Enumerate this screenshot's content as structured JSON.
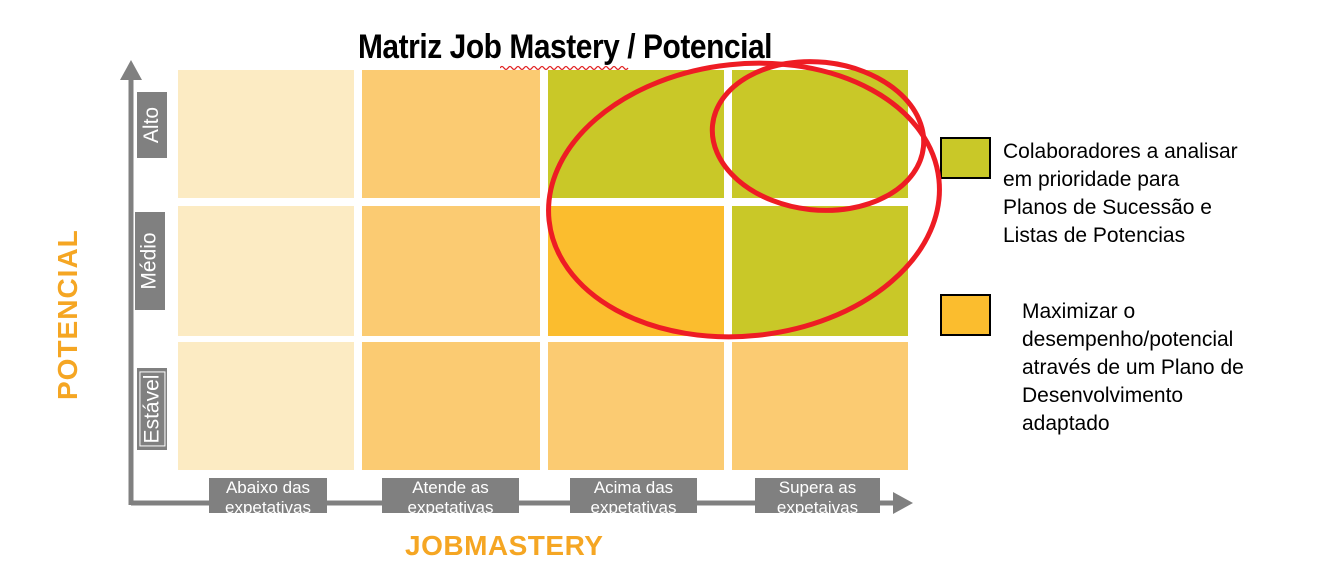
{
  "title": "Matriz Job Mastery / Potencial",
  "y_axis_title": "POTENCIAL",
  "x_axis_title": "JOBMASTERY",
  "y_levels": [
    "Alto",
    "Médio",
    "Estável"
  ],
  "x_levels": [
    "Abaixo das expetativas",
    "Atende as expetativas",
    "Acima das expetativas",
    "Supera as expetaivas"
  ],
  "colors": {
    "pale": "#fcebc3",
    "light_orange": "#fbcb72",
    "orange": "#fbbd2e",
    "green": "#c9c828",
    "axis": "#808080",
    "axis_title": "#f5a623",
    "highlight": "#ee1c24"
  },
  "grid": [
    [
      "pale",
      "light_orange",
      "green",
      "green"
    ],
    [
      "pale",
      "light_orange",
      "orange",
      "green"
    ],
    [
      "pale",
      "light_orange",
      "light_orange",
      "light_orange"
    ]
  ],
  "legend": [
    {
      "color": "green",
      "text": "Colaboradores a analisar em prioridade para Planos de Sucessão e Listas de Potencias"
    },
    {
      "color": "orange",
      "text": "Maximizar o desempenho/potencial através de um Plano de Desenvolvimento adaptado"
    }
  ]
}
